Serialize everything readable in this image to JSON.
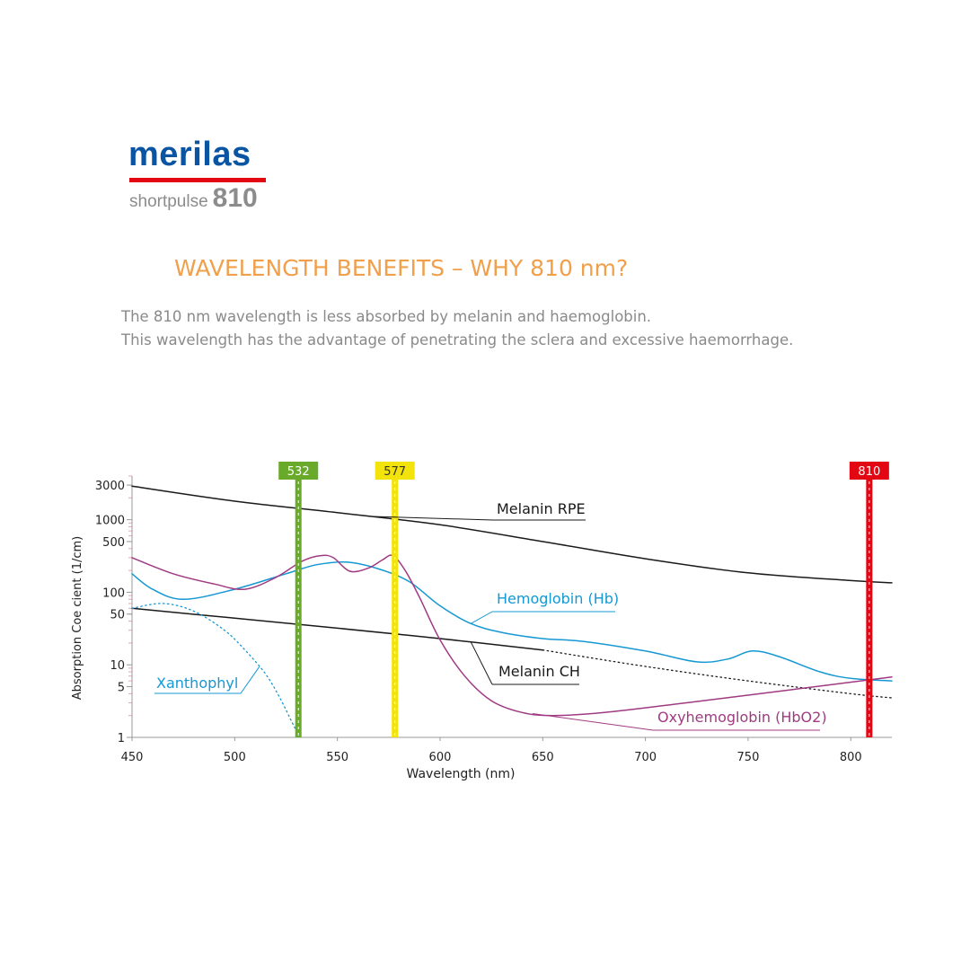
{
  "brand": {
    "name": "merilas",
    "product_light": "shortpulse",
    "product_bold": "810",
    "colors": {
      "blue": "#0a55a3",
      "red": "#e30613",
      "grey": "#8c8c8c"
    }
  },
  "headline": "WAVELENGTH BENEFITS – WHY 810 nm?",
  "intro": {
    "line1": "The 810 nm wavelength is less absorbed by melanin and haemoglobin.",
    "line2": "This wavelength has the advantage of penetrating the sclera and excessive haemorrhage."
  },
  "chart_data": {
    "type": "line",
    "title": "",
    "xlabel": "Wavelength (nm)",
    "ylabel": "Absorption Coe cient (1/cm)",
    "xlim": [
      450,
      820
    ],
    "ylim": [
      1,
      4000
    ],
    "yscale": "log",
    "x_ticks": [
      450,
      500,
      550,
      600,
      650,
      700,
      750,
      800
    ],
    "y_ticks": [
      1,
      5,
      10,
      50,
      100,
      500,
      1000,
      3000
    ],
    "grid": false,
    "markers": [
      {
        "label": "532",
        "x": 531,
        "color": "#6aaa2a",
        "text_color": "#ffffff"
      },
      {
        "label": "577",
        "x": 578,
        "color": "#f2e40a",
        "text_color": "#333333"
      },
      {
        "label": "810",
        "x": 809,
        "color": "#e30613",
        "text_color": "#ffffff"
      }
    ],
    "series": [
      {
        "name": "Melanin RPE",
        "color": "#1a1a1a",
        "style": "solid",
        "x": [
          450,
          500,
          550,
          600,
          650,
          700,
          750,
          800,
          820
        ],
        "y": [
          2900,
          1800,
          1250,
          850,
          500,
          290,
          185,
          145,
          135
        ]
      },
      {
        "name": "Melanin CH",
        "color": "#1a1a1a",
        "style": "solid",
        "x": [
          450,
          500,
          550,
          600,
          650
        ],
        "y": [
          60,
          44,
          32,
          23,
          16
        ]
      },
      {
        "name": "Melanin CH (extrapolated)",
        "color": "#1a1a1a",
        "style": "dotted",
        "x": [
          650,
          700,
          750,
          800,
          820
        ],
        "y": [
          16,
          9.5,
          6,
          4,
          3.5
        ]
      },
      {
        "name": "Hemoglobin (Hb)",
        "color": "#1598d4",
        "style": "solid",
        "x": [
          450,
          460,
          475,
          500,
          525,
          540,
          555,
          570,
          585,
          600,
          615,
          630,
          650,
          670,
          700,
          725,
          740,
          752,
          765,
          785,
          800,
          820
        ],
        "y": [
          180,
          110,
          80,
          110,
          180,
          240,
          260,
          210,
          140,
          65,
          37,
          28,
          23,
          21,
          15.5,
          11,
          12,
          15.5,
          13,
          8,
          6.5,
          6
        ]
      },
      {
        "name": "Oxyhemoglobin (HbO2)",
        "color": "#a03a82",
        "style": "solid",
        "x": [
          450,
          470,
          490,
          505,
          520,
          533,
          542,
          548,
          556,
          565,
          572,
          577,
          583,
          590,
          600,
          612,
          625,
          640,
          655,
          680,
          720,
          770,
          820
        ],
        "y": [
          300,
          180,
          130,
          110,
          160,
          270,
          320,
          300,
          195,
          215,
          280,
          320,
          200,
          85,
          22,
          7,
          3.2,
          2.2,
          2.0,
          2.2,
          3.0,
          4.5,
          6.8
        ]
      },
      {
        "name": "Xanthophyl",
        "color": "#1598d4",
        "style": "dotted",
        "x": [
          450,
          465,
          480,
          495,
          505,
          515,
          522,
          528,
          531
        ],
        "y": [
          60,
          70,
          55,
          30,
          16,
          7.5,
          3.5,
          1.6,
          1.1
        ]
      }
    ],
    "annotations": [
      {
        "text": "Melanin RPE",
        "color": "#1a1a1a",
        "series": "Melanin RPE",
        "x": 565
      },
      {
        "text": "Hemoglobin (Hb)",
        "color": "#1598d4",
        "series": "Hemoglobin (Hb)",
        "x": 615
      },
      {
        "text": "Melanin CH",
        "color": "#1a1a1a",
        "series": "Melanin CH",
        "x": 615
      },
      {
        "text": "Xanthophyl",
        "color": "#1598d4",
        "series": "Xanthophyl",
        "x": 512
      },
      {
        "text": "Oxyhemoglobin (HbO2)",
        "color": "#a03a82",
        "series": "Oxyhemoglobin (HbO2)",
        "x": 645
      }
    ]
  }
}
